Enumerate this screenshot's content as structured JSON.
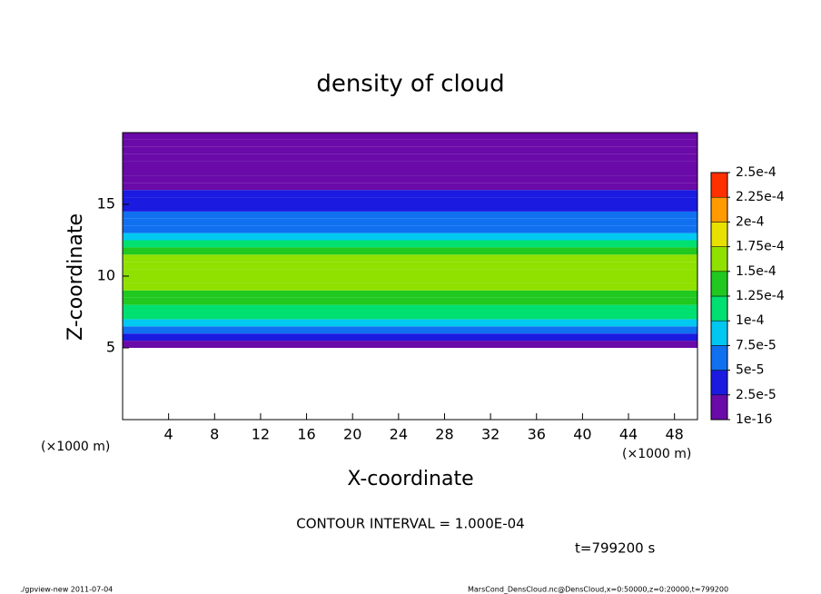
{
  "chart_data": {
    "type": "contour",
    "title": "density of cloud",
    "x_label": "X-coordinate",
    "y_label": "Z-coordinate",
    "x_unit": "(×1000 m)",
    "y_unit": "(×1000 m)",
    "annotation": "CONTOUR INTERVAL = 1.000E-04",
    "time_label": "t=799200 s",
    "footer_left": "./gpview-new   2011-07-04",
    "footer_right": "MarsCond_DensCloud.nc@DensCloud,x=0:50000,z=0:20000,t=799200",
    "xlim": [
      0,
      50
    ],
    "ylim": [
      0,
      20
    ],
    "xticks": [
      4,
      8,
      12,
      16,
      20,
      24,
      28,
      32,
      36,
      40,
      44,
      48
    ],
    "yticks": [
      5,
      10,
      15
    ],
    "z": [
      5.25,
      5.75,
      6.25,
      6.75,
      7.25,
      7.75,
      8.25,
      8.75,
      9.25,
      9.75,
      10.25,
      10.75,
      11.25,
      11.75,
      12.25,
      12.75,
      13.25,
      13.75,
      14.25,
      14.75,
      15.25,
      15.75,
      16.25,
      16.75,
      17.25,
      17.75,
      18.25,
      18.75,
      19.25,
      19.75
    ],
    "values": [
      1e-05,
      4e-05,
      7e-05,
      9e-05,
      0.00011,
      0.00012,
      0.00013,
      0.00014,
      0.00015,
      0.00016,
      0.00016,
      0.00016,
      0.00015,
      0.00014,
      0.00012,
      9e-05,
      7e-05,
      6e-05,
      5e-05,
      4e-05,
      3e-05,
      3e-05,
      2e-05,
      2e-05,
      1e-05,
      1e-05,
      1e-05,
      1e-05,
      1e-05,
      1e-05
    ],
    "levels": [
      {
        "value": 1e-16,
        "label": "1e-16"
      },
      {
        "value": 2.5e-05,
        "label": "2.5e-5"
      },
      {
        "value": 5e-05,
        "label": "5e-5"
      },
      {
        "value": 7.5e-05,
        "label": "7.5e-5"
      },
      {
        "value": 0.0001,
        "label": "1e-4"
      },
      {
        "value": 0.000125,
        "label": "1.25e-4"
      },
      {
        "value": 0.00015,
        "label": "1.5e-4"
      },
      {
        "value": 0.000175,
        "label": "1.75e-4"
      },
      {
        "value": 0.0002,
        "label": "2e-4"
      },
      {
        "value": 0.000225,
        "label": "2.25e-4"
      },
      {
        "value": 0.00025,
        "label": "2.5e-4"
      }
    ],
    "colors": [
      "#6a0aa8",
      "#1a1ae0",
      "#1070f0",
      "#00c8f0",
      "#00e070",
      "#20c820",
      "#90e000",
      "#e8e000",
      "#ff9a00",
      "#ff3000",
      "#ff8888"
    ]
  }
}
